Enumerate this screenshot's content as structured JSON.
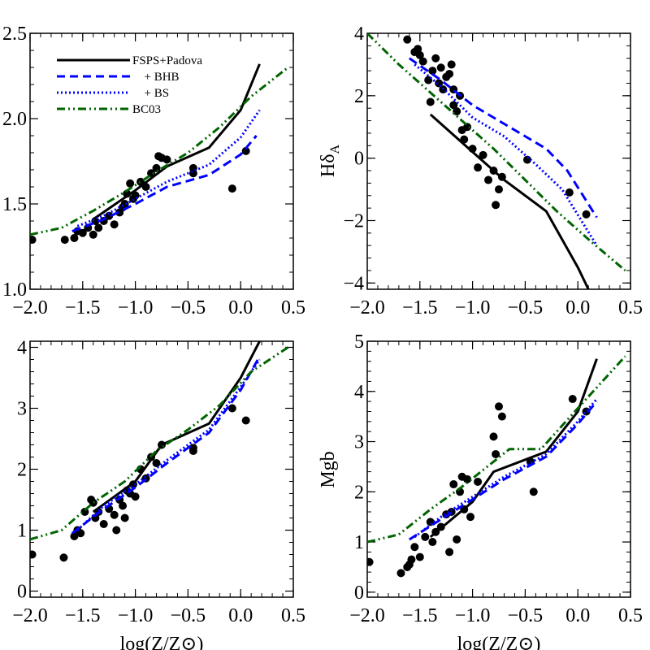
{
  "chart_data": [
    {
      "type": "scatter",
      "xlabel": "",
      "ylabel": "",
      "xlim": [
        -2.0,
        0.5
      ],
      "ylim": [
        1.0,
        2.5
      ],
      "xticks": [
        "−2.0",
        "−1.5",
        "−1.0",
        "−0.5",
        "0.0",
        "0.5"
      ],
      "xtick_values": [
        -2.0,
        -1.5,
        -1.0,
        -0.5,
        0.0,
        0.5
      ],
      "yticks": [
        "1.0",
        "1.5",
        "2.0",
        "2.5"
      ],
      "ytick_values": [
        1.0,
        1.5,
        2.0,
        2.5
      ],
      "legend": {
        "placement": "top-left",
        "entries": [
          {
            "label": "FSPS+Padova",
            "series": 0
          },
          {
            "label": "  + BHB",
            "series": 1
          },
          {
            "label": "  + BS",
            "series": 2
          },
          {
            "label": "BC03",
            "series": 3
          }
        ]
      },
      "series": [
        {
          "style": "solid",
          "color": "#000000",
          "x": [
            -1.4,
            -1.0,
            -0.7,
            -0.3,
            0.0,
            0.18
          ],
          "y": [
            1.41,
            1.58,
            1.72,
            1.83,
            2.05,
            2.32
          ]
        },
        {
          "style": "dashed",
          "color": "#0000ff",
          "x": [
            -1.6,
            -1.3,
            -1.0,
            -0.7,
            -0.3,
            0.0,
            0.15
          ],
          "y": [
            1.34,
            1.41,
            1.5,
            1.6,
            1.67,
            1.79,
            1.9
          ]
        },
        {
          "style": "dotted",
          "color": "#0000ff",
          "x": [
            -1.55,
            -1.3,
            -1.0,
            -0.7,
            -0.3,
            0.0,
            0.18
          ],
          "y": [
            1.37,
            1.43,
            1.53,
            1.63,
            1.73,
            1.89,
            2.05
          ]
        },
        {
          "style": "dashdotdot",
          "color": "#006400",
          "x": [
            -2.0,
            -1.7,
            -1.4,
            -1.1,
            -0.8,
            -0.5,
            -0.2,
            0.1,
            0.45
          ],
          "y": [
            1.32,
            1.36,
            1.46,
            1.57,
            1.69,
            1.8,
            1.95,
            2.13,
            2.3
          ]
        }
      ],
      "points": {
        "x": [
          -1.98,
          -1.67,
          -1.58,
          -1.55,
          -1.5,
          -1.45,
          -1.4,
          -1.38,
          -1.35,
          -1.3,
          -1.25,
          -1.2,
          -1.15,
          -1.12,
          -1.1,
          -1.08,
          -1.05,
          -1.02,
          -1.0,
          -0.95,
          -0.9,
          -0.85,
          -0.8,
          -0.78,
          -0.75,
          -0.7,
          -0.45,
          -0.45,
          -0.08,
          0.05
        ],
        "y": [
          1.29,
          1.29,
          1.3,
          1.34,
          1.33,
          1.36,
          1.32,
          1.4,
          1.36,
          1.4,
          1.43,
          1.38,
          1.45,
          1.48,
          1.5,
          1.56,
          1.62,
          1.53,
          1.55,
          1.63,
          1.6,
          1.68,
          1.71,
          1.78,
          1.77,
          1.76,
          1.68,
          1.71,
          1.59,
          1.81
        ]
      }
    },
    {
      "type": "scatter",
      "xlabel": "",
      "ylabel": "Hδ",
      "ylabel_subscript": "A",
      "xlim": [
        -2.0,
        0.5
      ],
      "ylim": [
        -4.2,
        4.0
      ],
      "xticks": [
        "−2.0",
        "−1.5",
        "−1.0",
        "−0.5",
        "0.0",
        "0.5"
      ],
      "xtick_values": [
        -2.0,
        -1.5,
        -1.0,
        -0.5,
        0.0,
        0.5
      ],
      "yticks": [
        "−4",
        "−2",
        "0",
        "2",
        "4"
      ],
      "ytick_values": [
        -4,
        -2,
        0,
        2,
        4
      ],
      "series": [
        {
          "style": "solid",
          "color": "#000000",
          "x": [
            -1.4,
            -1.0,
            -0.7,
            -0.3,
            0.0,
            0.1
          ],
          "y": [
            1.4,
            0.2,
            -0.7,
            -1.7,
            -3.5,
            -4.2
          ]
        },
        {
          "style": "dashed",
          "color": "#0000ff",
          "x": [
            -1.6,
            -1.3,
            -1.0,
            -0.7,
            -0.3,
            -0.1,
            0.18
          ],
          "y": [
            3.2,
            2.5,
            1.7,
            1.1,
            0.3,
            -0.4,
            -1.9
          ]
        },
        {
          "style": "dotted",
          "color": "#0000ff",
          "x": [
            -1.55,
            -1.3,
            -1.0,
            -0.7,
            -0.4,
            -0.15,
            0.18
          ],
          "y": [
            3.0,
            2.3,
            1.3,
            0.7,
            -0.2,
            -1.0,
            -2.8
          ]
        },
        {
          "style": "dashdotdot",
          "color": "#006400",
          "x": [
            -2.0,
            -1.7,
            -1.4,
            -1.1,
            -0.8,
            -0.5,
            -0.2,
            0.1,
            0.45
          ],
          "y": [
            4.0,
            3.0,
            2.1,
            1.2,
            0.3,
            -0.7,
            -1.7,
            -2.6,
            -3.6
          ]
        }
      ],
      "points": {
        "x": [
          -1.62,
          -1.55,
          -1.52,
          -1.5,
          -1.47,
          -1.42,
          -1.38,
          -1.35,
          -1.32,
          -1.28,
          -1.25,
          -1.2,
          -1.18,
          -1.15,
          -1.12,
          -1.1,
          -1.08,
          -1.05,
          -1.0,
          -0.95,
          -0.9,
          -0.85,
          -0.8,
          -0.78,
          -0.75,
          -0.72,
          -0.48,
          -0.08,
          0.08,
          -1.4,
          -1.3,
          -1.22,
          -1.18
        ],
        "y": [
          3.8,
          3.4,
          3.5,
          3.3,
          3.1,
          2.5,
          2.8,
          3.2,
          2.4,
          2.2,
          2.6,
          3.0,
          2.2,
          1.5,
          2.0,
          0.9,
          0.6,
          1.0,
          0.3,
          -0.3,
          0.1,
          -0.7,
          -0.4,
          -1.5,
          -1.0,
          -0.6,
          -0.05,
          -1.1,
          -1.8,
          1.8,
          2.9,
          2.7,
          1.7
        ]
      }
    },
    {
      "type": "scatter",
      "xlabel": "log(Z/Z⊙)",
      "ylabel": "",
      "xlim": [
        -2.0,
        0.5
      ],
      "ylim": [
        -0.1,
        4.1
      ],
      "xticks": [
        "−2.0",
        "−1.5",
        "−1.0",
        "−0.5",
        "0.0",
        "0.5"
      ],
      "xtick_values": [
        -2.0,
        -1.5,
        -1.0,
        -0.5,
        0.0,
        0.5
      ],
      "yticks": [
        "0",
        "1",
        "2",
        "3",
        "4"
      ],
      "ytick_values": [
        0,
        1,
        2,
        3,
        4
      ],
      "series": [
        {
          "style": "solid",
          "color": "#000000",
          "x": [
            -1.4,
            -1.0,
            -0.75,
            -0.3,
            0.0,
            0.18
          ],
          "y": [
            1.3,
            1.8,
            2.4,
            2.75,
            3.5,
            4.1
          ]
        },
        {
          "style": "dashed",
          "color": "#0000ff",
          "x": [
            -1.6,
            -1.3,
            -1.0,
            -0.7,
            -0.3,
            0.0,
            0.18
          ],
          "y": [
            0.95,
            1.35,
            1.7,
            2.1,
            2.6,
            3.3,
            3.85
          ]
        },
        {
          "style": "dotted",
          "color": "#0000ff",
          "x": [
            -1.55,
            -1.3,
            -1.0,
            -0.7,
            -0.3,
            0.0,
            0.18
          ],
          "y": [
            1.0,
            1.4,
            1.75,
            2.15,
            2.65,
            3.35,
            3.8
          ]
        },
        {
          "style": "dashdotdot",
          "color": "#006400",
          "x": [
            -2.0,
            -1.7,
            -1.4,
            -1.1,
            -0.8,
            -0.5,
            -0.2,
            0.1,
            0.45
          ],
          "y": [
            0.85,
            1.0,
            1.45,
            1.8,
            2.3,
            2.65,
            3.05,
            3.6,
            4.0
          ]
        }
      ],
      "points": {
        "x": [
          -1.98,
          -1.68,
          -1.58,
          -1.55,
          -1.52,
          -1.48,
          -1.42,
          -1.4,
          -1.35,
          -1.3,
          -1.25,
          -1.2,
          -1.15,
          -1.12,
          -1.1,
          -1.08,
          -1.05,
          -1.02,
          -1.0,
          -0.95,
          -0.9,
          -0.85,
          -0.8,
          -0.75,
          -0.45,
          -0.45,
          -0.08,
          0.05,
          -1.38,
          -1.18
        ],
        "y": [
          0.6,
          0.55,
          0.9,
          1.0,
          0.95,
          1.3,
          1.5,
          1.45,
          1.3,
          1.1,
          1.35,
          1.25,
          1.5,
          1.4,
          1.2,
          1.65,
          1.6,
          1.75,
          1.55,
          2.0,
          1.85,
          2.2,
          2.1,
          2.4,
          2.3,
          2.35,
          3.0,
          2.8,
          1.2,
          1.0
        ]
      }
    },
    {
      "type": "scatter",
      "xlabel": "log(Z/Z⊙)",
      "ylabel": "Mgb",
      "xlim": [
        -2.0,
        0.5
      ],
      "ylim": [
        -0.1,
        5.0
      ],
      "xticks": [
        "−2.0",
        "−1.5",
        "−1.0",
        "−0.5",
        "0.0",
        "0.5"
      ],
      "xtick_values": [
        -2.0,
        -1.5,
        -1.0,
        -0.5,
        0.0,
        0.5
      ],
      "yticks": [
        "0",
        "1",
        "2",
        "3",
        "4",
        "5"
      ],
      "ytick_values": [
        0,
        1,
        2,
        3,
        4,
        5
      ],
      "series": [
        {
          "style": "solid",
          "color": "#000000",
          "x": [
            -1.4,
            -1.0,
            -0.8,
            -0.3,
            0.0,
            0.18
          ],
          "y": [
            1.1,
            1.8,
            2.4,
            2.8,
            3.6,
            4.65
          ]
        },
        {
          "style": "dashed",
          "color": "#0000ff",
          "x": [
            -1.6,
            -1.3,
            -1.0,
            -0.7,
            -0.3,
            0.0,
            0.18
          ],
          "y": [
            1.05,
            1.45,
            1.85,
            2.25,
            2.7,
            3.35,
            3.8
          ]
        },
        {
          "style": "dotted",
          "color": "#0000ff",
          "x": [
            -1.55,
            -1.3,
            -1.0,
            -0.7,
            -0.3,
            0.0,
            0.18
          ],
          "y": [
            1.1,
            1.5,
            1.9,
            2.3,
            2.75,
            3.4,
            3.85
          ]
        },
        {
          "style": "dashdotdot",
          "color": "#006400",
          "x": [
            -2.0,
            -1.7,
            -1.4,
            -1.1,
            -0.8,
            -0.65,
            -0.35,
            -0.05,
            0.45
          ],
          "y": [
            1.0,
            1.15,
            1.65,
            2.1,
            2.6,
            2.85,
            2.85,
            3.55,
            4.7
          ]
        }
      ],
      "points": {
        "x": [
          -1.98,
          -1.68,
          -1.62,
          -1.58,
          -1.55,
          -1.5,
          -1.4,
          -1.38,
          -1.35,
          -1.3,
          -1.25,
          -1.22,
          -1.2,
          -1.15,
          -1.12,
          -1.1,
          -1.08,
          -1.05,
          -1.02,
          -0.95,
          -0.8,
          -0.78,
          -0.75,
          -0.72,
          -0.45,
          -0.42,
          -0.05,
          0.08,
          -1.45,
          -1.6,
          -1.18
        ],
        "y": [
          0.6,
          0.38,
          0.5,
          0.65,
          0.9,
          0.7,
          1.4,
          1.0,
          1.2,
          1.3,
          1.55,
          0.8,
          1.6,
          1.05,
          2.0,
          2.3,
          1.65,
          2.25,
          1.5,
          2.2,
          3.1,
          2.75,
          3.7,
          3.5,
          2.6,
          2.0,
          3.85,
          3.6,
          1.1,
          0.55,
          2.15
        ]
      }
    }
  ]
}
